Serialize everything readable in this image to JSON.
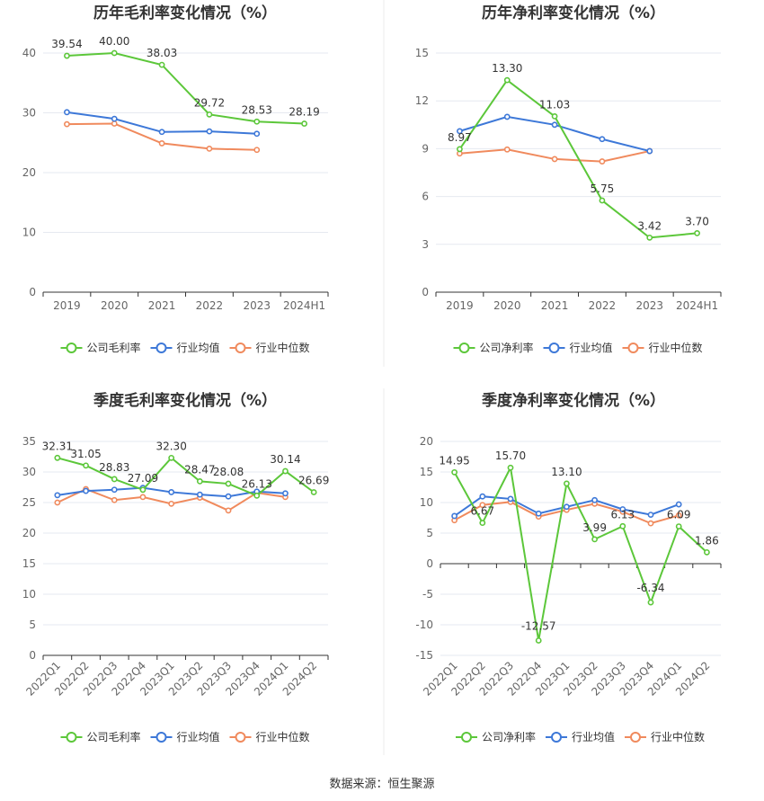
{
  "source_text": "数据来源：恒生聚源",
  "legend_labels": {
    "gross": "公司毛利率",
    "net": "公司净利率",
    "industry_avg": "行业均值",
    "industry_median": "行业中位数"
  },
  "colors": {
    "company": "#5cc73a",
    "industry_avg": "#3d78d8",
    "industry_median": "#f08a5d",
    "grid": "#e6e9f0",
    "axis": "#333333"
  },
  "chart_data": [
    {
      "type": "line",
      "title": "历年毛利率变化情况（%）",
      "categories": [
        "2019",
        "2020",
        "2021",
        "2022",
        "2023",
        "2024H1"
      ],
      "ylim": [
        0,
        40
      ],
      "yticks": [
        0,
        10,
        20,
        30,
        40
      ],
      "x_label_rotate": false,
      "grid": true,
      "legend_position": "bottom",
      "series": [
        {
          "name": "公司毛利率",
          "values": [
            39.54,
            40.0,
            38.03,
            29.72,
            28.53,
            28.19
          ],
          "labels": true
        },
        {
          "name": "行业均值",
          "values": [
            30.1,
            29.0,
            26.8,
            26.9,
            26.5,
            null
          ],
          "labels": false
        },
        {
          "name": "行业中位数",
          "values": [
            28.1,
            28.2,
            24.9,
            24.0,
            23.8,
            null
          ],
          "labels": false
        }
      ]
    },
    {
      "type": "line",
      "title": "历年净利率变化情况（%）",
      "categories": [
        "2019",
        "2020",
        "2021",
        "2022",
        "2023",
        "2024H1"
      ],
      "ylim": [
        0,
        15
      ],
      "yticks": [
        0,
        3,
        6,
        9,
        12,
        15
      ],
      "x_label_rotate": false,
      "grid": true,
      "legend_position": "bottom",
      "series": [
        {
          "name": "公司净利率",
          "values": [
            8.97,
            13.3,
            11.03,
            5.75,
            3.42,
            3.7
          ],
          "labels": true
        },
        {
          "name": "行业均值",
          "values": [
            10.1,
            11.0,
            10.5,
            9.6,
            8.85,
            null
          ],
          "labels": false
        },
        {
          "name": "行业中位数",
          "values": [
            8.7,
            8.95,
            8.35,
            8.2,
            8.85,
            null
          ],
          "labels": false
        }
      ]
    },
    {
      "type": "line",
      "title": "季度毛利率变化情况（%）",
      "categories": [
        "2022Q1",
        "2022Q2",
        "2022Q3",
        "2022Q4",
        "2023Q1",
        "2023Q2",
        "2023Q3",
        "2023Q4",
        "2024Q1",
        "2024Q2"
      ],
      "ylim": [
        0,
        35
      ],
      "yticks": [
        0,
        5,
        10,
        15,
        20,
        25,
        30,
        35
      ],
      "x_label_rotate": true,
      "grid": true,
      "legend_position": "bottom",
      "series": [
        {
          "name": "公司毛利率",
          "values": [
            32.31,
            31.05,
            28.83,
            27.09,
            32.3,
            28.47,
            28.08,
            26.13,
            30.14,
            26.69
          ],
          "labels": true
        },
        {
          "name": "行业均值",
          "values": [
            26.2,
            26.9,
            27.1,
            27.4,
            26.7,
            26.3,
            26.0,
            26.8,
            26.5,
            null
          ],
          "labels": false
        },
        {
          "name": "行业中位数",
          "values": [
            25.0,
            27.2,
            25.4,
            25.9,
            24.8,
            25.8,
            23.7,
            26.6,
            25.9,
            null
          ],
          "labels": false
        }
      ]
    },
    {
      "type": "line",
      "title": "季度净利率变化情况（%）",
      "categories": [
        "2022Q1",
        "2022Q2",
        "2022Q3",
        "2022Q4",
        "2023Q1",
        "2023Q2",
        "2023Q3",
        "2023Q4",
        "2024Q1",
        "2024Q2"
      ],
      "ylim": [
        -15,
        20
      ],
      "yticks": [
        -15,
        -10,
        -5,
        0,
        5,
        10,
        15,
        20
      ],
      "x_label_rotate": true,
      "grid": true,
      "legend_position": "bottom",
      "series": [
        {
          "name": "公司净利率",
          "values": [
            14.95,
            6.67,
            15.7,
            -12.57,
            13.1,
            3.99,
            6.13,
            -6.34,
            6.09,
            1.86
          ],
          "labels": true
        },
        {
          "name": "行业均值",
          "values": [
            7.8,
            11.0,
            10.6,
            8.2,
            9.3,
            10.4,
            8.9,
            8.0,
            9.7,
            null
          ],
          "labels": false
        },
        {
          "name": "行业中位数",
          "values": [
            7.1,
            9.6,
            10.1,
            7.7,
            8.8,
            9.8,
            8.5,
            6.6,
            7.9,
            null
          ],
          "labels": false
        }
      ]
    }
  ]
}
